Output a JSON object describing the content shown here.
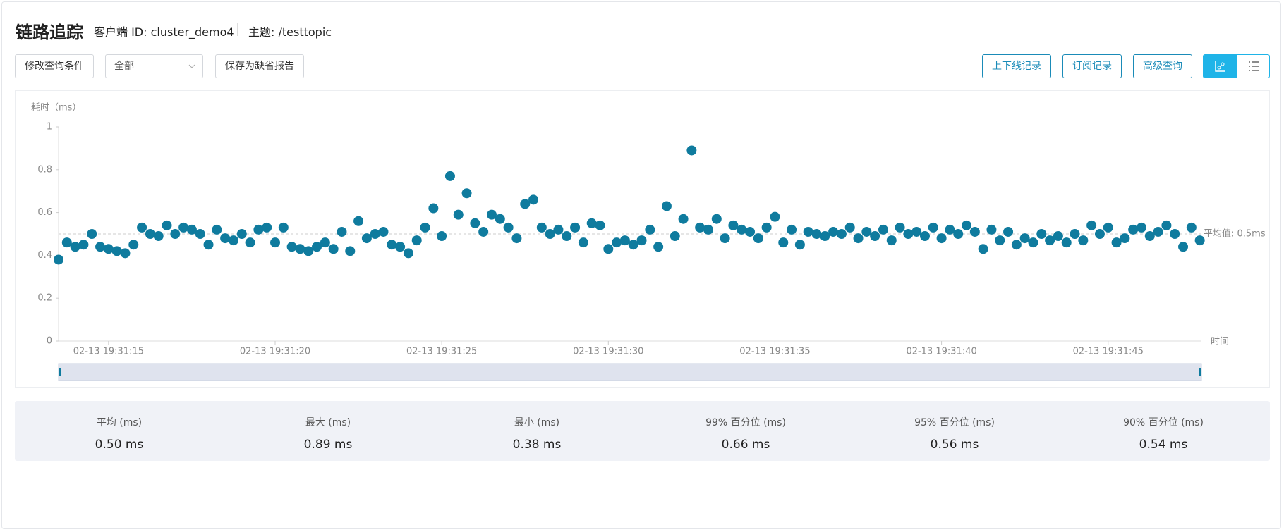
{
  "header": {
    "title": "链路追踪",
    "client": "客户端 ID: cluster_demo4",
    "topic": "主题: /testtopic"
  },
  "toolbar": {
    "left": [
      "修改查询条件",
      "全部",
      "保存为缺省报告"
    ],
    "right": [
      "上下线记录",
      "订阅记录",
      "高级查询"
    ]
  },
  "chart_data": {
    "type": "scatter",
    "y_label": "耗时（ms）",
    "x_label": "时间",
    "color": "#0f7b9e",
    "xlim": [
      13.5,
      47.8
    ],
    "ylim": [
      0,
      1
    ],
    "yticks": [
      0,
      0.2,
      0.4,
      0.6,
      0.8,
      1
    ],
    "xticks": [
      {
        "value": 15,
        "label": "02-13 19:31:15"
      },
      {
        "value": 20,
        "label": "02-13 19:31:20"
      },
      {
        "value": 25,
        "label": "02-13 19:31:25"
      },
      {
        "value": 30,
        "label": "02-13 19:31:30"
      },
      {
        "value": 35,
        "label": "02-13 19:31:35"
      },
      {
        "value": 40,
        "label": "02-13 19:31:40"
      },
      {
        "value": 45,
        "label": "02-13 19:31:45"
      }
    ],
    "average": {
      "value": 0.5,
      "label": "平均值: 0.5ms"
    },
    "x": [
      13.5,
      13.75,
      14,
      14.25,
      14.5,
      14.75,
      15,
      15.25,
      15.5,
      15.75,
      16,
      16.25,
      16.5,
      16.75,
      17,
      17.25,
      17.5,
      17.75,
      18,
      18.25,
      18.5,
      18.75,
      19,
      19.25,
      19.5,
      19.75,
      20,
      20.25,
      20.5,
      20.75,
      21,
      21.25,
      21.5,
      21.75,
      22,
      22.25,
      22.5,
      22.75,
      23,
      23.25,
      23.5,
      23.75,
      24,
      24.25,
      24.5,
      24.75,
      25,
      25.25,
      25.5,
      25.75,
      26,
      26.25,
      26.5,
      26.75,
      27,
      27.25,
      27.5,
      27.75,
      28,
      28.25,
      28.5,
      28.75,
      29,
      29.25,
      29.5,
      29.75,
      30,
      30.25,
      30.5,
      30.75,
      31,
      31.25,
      31.5,
      31.75,
      32,
      32.25,
      32.5,
      32.75,
      33,
      33.25,
      33.5,
      33.75,
      34,
      34.25,
      34.5,
      34.75,
      35,
      35.25,
      35.5,
      35.75,
      36,
      36.25,
      36.5,
      36.75,
      37,
      37.25,
      37.5,
      37.75,
      38,
      38.25,
      38.5,
      38.75,
      39,
      39.25,
      39.5,
      39.75,
      40,
      40.25,
      40.5,
      40.75,
      41,
      41.25,
      41.5,
      41.75,
      42,
      42.25,
      42.5,
      42.75,
      43,
      43.25,
      43.5,
      43.75,
      44,
      44.25,
      44.5,
      44.75,
      45,
      45.25,
      45.5,
      45.75,
      46,
      46.25,
      46.5,
      46.75,
      47,
      47.25,
      47.5,
      47.75
    ],
    "values": [
      0.38,
      0.46,
      0.44,
      0.45,
      0.5,
      0.44,
      0.43,
      0.42,
      0.41,
      0.45,
      0.53,
      0.5,
      0.49,
      0.54,
      0.5,
      0.53,
      0.52,
      0.5,
      0.45,
      0.52,
      0.48,
      0.47,
      0.5,
      0.46,
      0.52,
      0.53,
      0.46,
      0.53,
      0.44,
      0.43,
      0.42,
      0.44,
      0.46,
      0.43,
      0.51,
      0.42,
      0.56,
      0.48,
      0.5,
      0.51,
      0.45,
      0.44,
      0.41,
      0.47,
      0.53,
      0.62,
      0.49,
      0.77,
      0.59,
      0.69,
      0.55,
      0.51,
      0.59,
      0.57,
      0.53,
      0.48,
      0.64,
      0.66,
      0.53,
      0.5,
      0.52,
      0.49,
      0.53,
      0.46,
      0.55,
      0.54,
      0.43,
      0.46,
      0.47,
      0.45,
      0.47,
      0.52,
      0.44,
      0.63,
      0.49,
      0.57,
      0.89,
      0.53,
      0.52,
      0.57,
      0.48,
      0.54,
      0.52,
      0.51,
      0.48,
      0.53,
      0.58,
      0.46,
      0.52,
      0.45,
      0.51,
      0.5,
      0.49,
      0.51,
      0.5,
      0.53,
      0.48,
      0.51,
      0.49,
      0.52,
      0.47,
      0.53,
      0.5,
      0.51,
      0.49,
      0.53,
      0.48,
      0.52,
      0.5,
      0.54,
      0.51,
      0.43,
      0.52,
      0.47,
      0.51,
      0.45,
      0.48,
      0.46,
      0.5,
      0.47,
      0.49,
      0.46,
      0.5,
      0.47,
      0.54,
      0.5,
      0.53,
      0.46,
      0.48,
      0.52,
      0.53,
      0.49,
      0.51,
      0.54,
      0.5,
      0.44,
      0.53,
      0.47
    ]
  },
  "stats": [
    {
      "label": "平均 (ms)",
      "value": "0.50 ms"
    },
    {
      "label": "最大 (ms)",
      "value": "0.89 ms"
    },
    {
      "label": "最小 (ms)",
      "value": "0.38 ms"
    },
    {
      "label": "99% 百分位 (ms)",
      "value": "0.66 ms"
    },
    {
      "label": "95% 百分位 (ms)",
      "value": "0.56 ms"
    },
    {
      "label": "90% 百分位 (ms)",
      "value": "0.54 ms"
    }
  ]
}
